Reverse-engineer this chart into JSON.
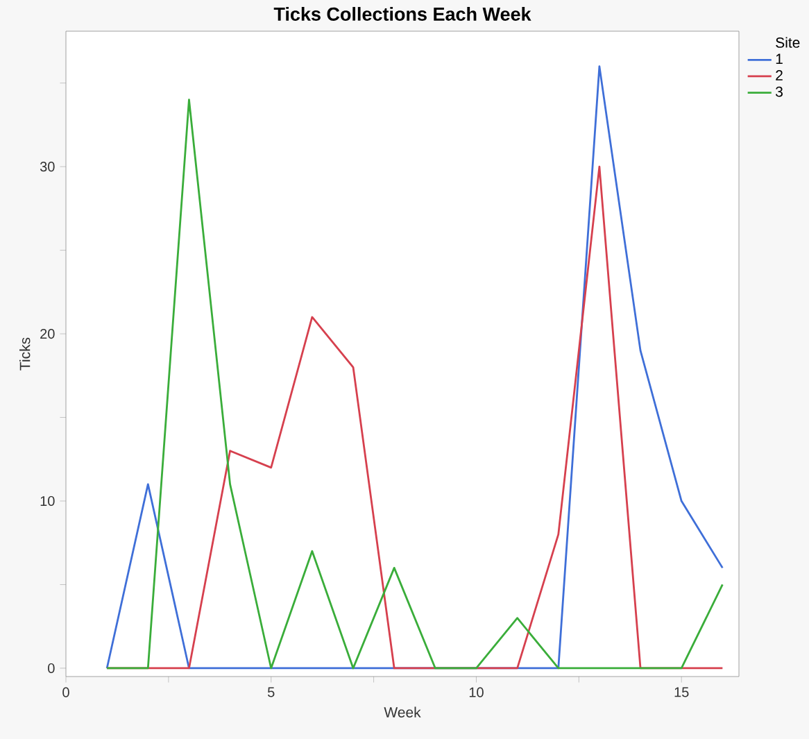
{
  "chart_data": {
    "type": "line",
    "title": "Ticks Collections Each Week",
    "xlabel": "Week",
    "ylabel": "Ticks",
    "legend_title": "Site",
    "legend": "top right",
    "grid": false,
    "marker": "none",
    "line_style": "solid",
    "x": [
      1,
      2,
      3,
      4,
      5,
      6,
      7,
      8,
      9,
      10,
      11,
      12,
      13,
      14,
      15,
      16
    ],
    "series": [
      {
        "name": "1",
        "color": "#3f6fd8",
        "values": [
          0,
          11,
          0,
          0,
          0,
          0,
          0,
          0,
          0,
          0,
          0,
          0,
          36,
          19,
          10,
          6
        ]
      },
      {
        "name": "2",
        "color": "#d6404e",
        "values": [
          0,
          0,
          0,
          13,
          12,
          21,
          18,
          0,
          0,
          0,
          0,
          8,
          30,
          0,
          0,
          0
        ]
      },
      {
        "name": "3",
        "color": "#3aad3a",
        "values": [
          0,
          0,
          34,
          11,
          0,
          7,
          0,
          6,
          0,
          0,
          3,
          0,
          0,
          0,
          0,
          5
        ]
      }
    ],
    "xlim": [
      0,
      16.4
    ],
    "ylim": [
      -0.5,
      38.1
    ],
    "xticks": [
      0,
      {
        "value": 2.5,
        "label": null
      },
      5,
      {
        "value": 7.5,
        "label": null
      },
      10,
      {
        "value": 12.5,
        "label": null
      },
      15
    ],
    "yticks": [
      0,
      {
        "value": 5,
        "label": null
      },
      10,
      {
        "value": 15,
        "label": null
      },
      20,
      {
        "value": 25,
        "label": null
      },
      30,
      {
        "value": 35,
        "label": null
      }
    ]
  }
}
